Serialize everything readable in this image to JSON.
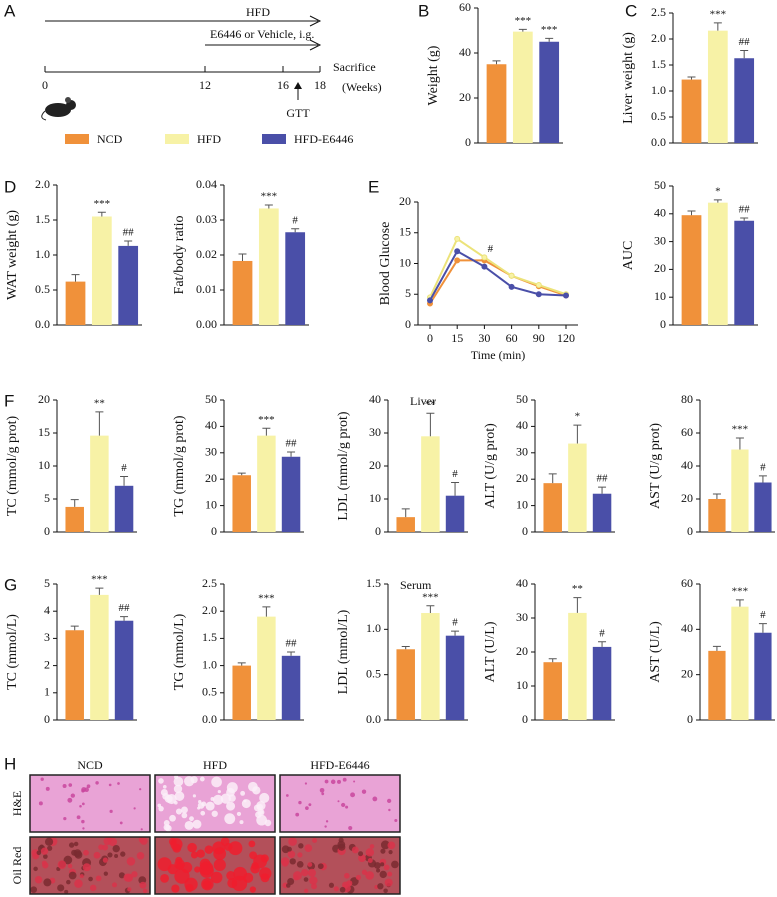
{
  "groups": [
    {
      "name": "NCD",
      "color": "#f0913a"
    },
    {
      "name": "HFD",
      "color": "#f7f2a6"
    },
    {
      "name": "HFD-E6446",
      "color": "#4a4fa8"
    }
  ],
  "timeline": {
    "panel": "A",
    "diet": "HFD",
    "treatment": "E6446 or Vehicle, i.g.",
    "end": "Sacrifice",
    "unit": "(Weeks)",
    "event": "GTT",
    "ticks": [
      0,
      12,
      16,
      18
    ]
  },
  "sections": [
    "Liver",
    "Serum"
  ],
  "histology": {
    "panel": "H",
    "columns": [
      "NCD",
      "HFD",
      "HFD-E6446"
    ],
    "rows": [
      "H&E",
      "Oil Red"
    ]
  },
  "chart_data": [
    {
      "type": "bar",
      "panel": "B",
      "ylabel": "Weight (g)",
      "categories": [
        null,
        null,
        null
      ],
      "values": [
        35,
        49.5,
        45
      ],
      "errors": [
        1.5,
        1,
        1.5
      ],
      "annotations": [
        null,
        "***",
        "***"
      ],
      "ylim": [
        0,
        60
      ],
      "yticks": [
        0,
        20,
        40,
        60
      ]
    },
    {
      "type": "bar",
      "panel": "C",
      "ylabel": "Liver weight (g)",
      "categories": [
        null,
        null,
        null
      ],
      "values": [
        1.22,
        2.16,
        1.63
      ],
      "errors": [
        0.05,
        0.15,
        0.15
      ],
      "annotations": [
        null,
        "***",
        "##"
      ],
      "ylim": [
        0,
        2.5
      ],
      "yticks": [
        {
          "value": 0,
          "label": "0.0"
        },
        0.5,
        {
          "value": 1,
          "label": "1.0"
        },
        1.5,
        {
          "value": 2,
          "label": "2.0"
        },
        2.5
      ]
    },
    {
      "type": "bar",
      "panel": "D",
      "ylabel": "WAT weight (g)",
      "categories": [
        null,
        null,
        null
      ],
      "values": [
        0.62,
        1.55,
        1.13
      ],
      "errors": [
        0.1,
        0.06,
        0.07
      ],
      "annotations": [
        null,
        "***",
        "##"
      ],
      "ylim": [
        0,
        2
      ],
      "yticks": [
        {
          "value": 0,
          "label": "0.0"
        },
        0.5,
        {
          "value": 1,
          "label": "1.0"
        },
        1.5,
        {
          "value": 2,
          "label": "2.0"
        }
      ]
    },
    {
      "type": "bar",
      "ylabel": "Fat/body ratio",
      "categories": [
        null,
        null,
        null
      ],
      "values": [
        0.0183,
        0.0333,
        0.0265
      ],
      "errors": [
        0.002,
        0.001,
        0.001
      ],
      "annotations": [
        null,
        "***",
        "#"
      ],
      "ylim": [
        0,
        0.04
      ],
      "yticks": [
        {
          "value": 0,
          "label": "0.00"
        },
        0.01,
        0.02,
        0.03,
        0.04
      ]
    },
    {
      "type": "line",
      "panel": "E",
      "ylabel": "Blood Glucose",
      "xlabel": "Time (min)",
      "categories": [
        "0",
        "15",
        "30",
        "60",
        "90",
        "120"
      ],
      "series": [
        {
          "values": [
            3.5,
            10.5,
            10.5,
            8,
            6.3,
            4.8
          ]
        },
        {
          "values": [
            4.5,
            14,
            11,
            8,
            6.5,
            5
          ]
        },
        {
          "values": [
            4,
            12,
            9.5,
            6.2,
            5,
            4.8
          ]
        }
      ],
      "annotations": [
        null,
        null,
        "#",
        null,
        null,
        null
      ],
      "ylim": [
        0,
        20
      ],
      "yticks": [
        0,
        5,
        10,
        15,
        20
      ]
    },
    {
      "type": "bar",
      "ylabel": "AUC",
      "categories": [
        null,
        null,
        null
      ],
      "values": [
        39.5,
        44,
        37.5
      ],
      "errors": [
        1.5,
        1,
        1
      ],
      "annotations": [
        null,
        "*",
        "##"
      ],
      "ylim": [
        0,
        50
      ],
      "yticks": [
        0,
        10,
        20,
        30,
        40,
        50
      ]
    },
    {
      "type": "bar",
      "panel": "F",
      "ylabel": "TC (mmol/g prot)",
      "categories": [
        null,
        null,
        null
      ],
      "values": [
        3.8,
        14.6,
        7
      ],
      "errors": [
        1.1,
        3.6,
        1.4
      ],
      "annotations": [
        null,
        "**",
        "#"
      ],
      "ylim": [
        0,
        20
      ],
      "yticks": [
        0,
        5,
        10,
        15,
        20
      ]
    },
    {
      "type": "bar",
      "ylabel": "TG (mmol/g prot)",
      "categories": [
        null,
        null,
        null
      ],
      "values": [
        21.5,
        36.5,
        28.5
      ],
      "errors": [
        0.8,
        2.8,
        1.8
      ],
      "annotations": [
        null,
        "***",
        "##"
      ],
      "ylim": [
        0,
        50
      ],
      "yticks": [
        0,
        10,
        20,
        30,
        40,
        50
      ]
    },
    {
      "type": "bar",
      "ylabel": "LDL (mmol/g prot)",
      "categories": [
        null,
        null,
        null
      ],
      "values": [
        4.5,
        29,
        11
      ],
      "errors": [
        2.5,
        7,
        4
      ],
      "annotations": [
        null,
        "**",
        "#"
      ],
      "ylim": [
        0,
        40
      ],
      "yticks": [
        0,
        10,
        20,
        30,
        40
      ]
    },
    {
      "type": "bar",
      "ylabel": "ALT (U/g prot)",
      "categories": [
        null,
        null,
        null
      ],
      "values": [
        18.5,
        33.5,
        14.5
      ],
      "errors": [
        3.5,
        7,
        2.5
      ],
      "annotations": [
        null,
        "*",
        "##"
      ],
      "ylim": [
        0,
        50
      ],
      "yticks": [
        0,
        10,
        20,
        30,
        40,
        50
      ]
    },
    {
      "type": "bar",
      "ylabel": "AST (U/g prot)",
      "categories": [
        null,
        null,
        null
      ],
      "values": [
        20,
        50,
        30
      ],
      "errors": [
        3,
        7,
        4
      ],
      "annotations": [
        null,
        "***",
        "#"
      ],
      "ylim": [
        0,
        80
      ],
      "yticks": [
        0,
        20,
        40,
        60,
        80
      ]
    },
    {
      "type": "bar",
      "panel": "G",
      "ylabel": "TC (mmol/L)",
      "categories": [
        null,
        null,
        null
      ],
      "values": [
        3.3,
        4.6,
        3.65
      ],
      "errors": [
        0.15,
        0.25,
        0.15
      ],
      "annotations": [
        null,
        "***",
        "##"
      ],
      "ylim": [
        0,
        5
      ],
      "yticks": [
        0,
        1,
        2,
        3,
        4,
        5
      ]
    },
    {
      "type": "bar",
      "ylabel": "TG (mmol/L)",
      "categories": [
        null,
        null,
        null
      ],
      "values": [
        1,
        1.9,
        1.18
      ],
      "errors": [
        0.05,
        0.18,
        0.07
      ],
      "annotations": [
        null,
        "***",
        "##"
      ],
      "ylim": [
        0,
        2.5
      ],
      "yticks": [
        {
          "value": 0,
          "label": "0.0"
        },
        0.5,
        {
          "value": 1,
          "label": "1.0"
        },
        1.5,
        {
          "value": 2,
          "label": "2.0"
        },
        2.5
      ]
    },
    {
      "type": "bar",
      "ylabel": "LDL (mmol/L)",
      "categories": [
        null,
        null,
        null
      ],
      "values": [
        0.78,
        1.18,
        0.93
      ],
      "errors": [
        0.03,
        0.08,
        0.05
      ],
      "annotations": [
        null,
        "***",
        "#"
      ],
      "ylim": [
        0,
        1.5
      ],
      "yticks": [
        {
          "value": 0,
          "label": "0.0"
        },
        0.5,
        {
          "value": 1,
          "label": "1.0"
        },
        1.5
      ]
    },
    {
      "type": "bar",
      "ylabel": "ALT (U/L)",
      "categories": [
        null,
        null,
        null
      ],
      "values": [
        17,
        31.5,
        21.5
      ],
      "errors": [
        1,
        4.5,
        1.5
      ],
      "annotations": [
        null,
        "**",
        "#"
      ],
      "ylim": [
        0,
        40
      ],
      "yticks": [
        0,
        10,
        20,
        30,
        40
      ]
    },
    {
      "type": "bar",
      "ylabel": "AST (U/L)",
      "categories": [
        null,
        null,
        null
      ],
      "values": [
        30.5,
        50,
        38.5
      ],
      "errors": [
        2,
        3,
        4
      ],
      "annotations": [
        null,
        "***",
        "#"
      ],
      "ylim": [
        0,
        60
      ],
      "yticks": [
        0,
        20,
        40,
        60
      ]
    }
  ]
}
